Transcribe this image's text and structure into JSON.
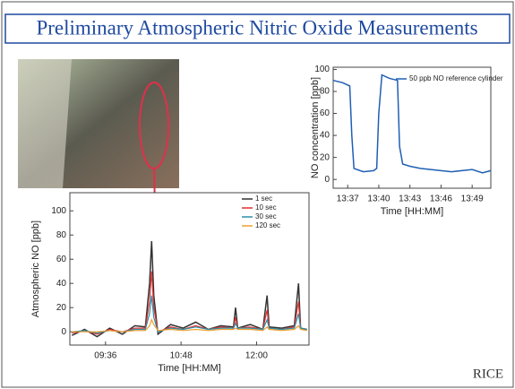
{
  "slide": {
    "title": "Preliminary Atmospheric Nitric Oxide Measurements",
    "logo": "RICE"
  },
  "chart_data": [
    {
      "type": "line",
      "ylabel": "NO concentration [ppb]",
      "xlabel": "Time [HH:MM]",
      "x": [
        815.6,
        816.5,
        817.2,
        817.4,
        817.6,
        818.5,
        819.5,
        819.8,
        820.0,
        820.3,
        821.0,
        821.8,
        822.0,
        822.3,
        823,
        824,
        825,
        826,
        827,
        828,
        829,
        830,
        830.8
      ],
      "series": [
        {
          "name": "50 ppb NO reference cylinder",
          "color": "#1f5fb4",
          "values": [
            90,
            88,
            85,
            40,
            10,
            7,
            8,
            10,
            60,
            95,
            92,
            90,
            30,
            14,
            12,
            10,
            9,
            8,
            7,
            8,
            9,
            6,
            8
          ]
        }
      ],
      "xlim": [
        815.6,
        830.8
      ],
      "ylim": [
        -8,
        102
      ],
      "xticks": [
        {
          "value": 817,
          "label": "13:37"
        },
        {
          "value": 820,
          "label": "13:40"
        },
        {
          "value": 823,
          "label": "13:43"
        },
        {
          "value": 826,
          "label": "13:46"
        },
        {
          "value": 829,
          "label": "13:49"
        }
      ],
      "yticks": [
        0,
        20,
        40,
        60,
        80,
        100
      ]
    },
    {
      "type": "line",
      "ylabel": "Atmospheric NO [ppb]",
      "xlabel": "Time [HH:MM]",
      "x": [
        544,
        556,
        568,
        580,
        592,
        604,
        614,
        618,
        620,
        622,
        626,
        638,
        650,
        662,
        674,
        686,
        698,
        700,
        702,
        714,
        726,
        730,
        732,
        744,
        756,
        760,
        762,
        768
      ],
      "series": [
        {
          "name": "1 sec",
          "color": "#333333",
          "values": [
            -3,
            2,
            -4,
            3,
            -2,
            5,
            4,
            40,
            75,
            30,
            -2,
            6,
            3,
            8,
            2,
            5,
            4,
            20,
            3,
            6,
            2,
            30,
            4,
            3,
            5,
            40,
            3,
            2
          ]
        },
        {
          "name": "10 sec",
          "color": "#e03030",
          "values": [
            -1,
            1,
            -2,
            2,
            0,
            3,
            3,
            25,
            50,
            20,
            0,
            4,
            2,
            5,
            2,
            4,
            3,
            12,
            3,
            4,
            2,
            18,
            3,
            2,
            4,
            25,
            3,
            2
          ]
        },
        {
          "name": "30 sec",
          "color": "#2a8fa8",
          "values": [
            0,
            1,
            -1,
            1,
            0,
            2,
            2,
            15,
            30,
            12,
            0,
            3,
            2,
            4,
            2,
            3,
            3,
            7,
            3,
            3,
            2,
            10,
            3,
            2,
            3,
            15,
            3,
            2
          ]
        },
        {
          "name": "120 sec",
          "color": "#f0a030",
          "values": [
            0,
            0,
            0,
            1,
            0,
            1,
            1,
            5,
            10,
            6,
            1,
            2,
            1,
            2,
            1,
            2,
            2,
            3,
            2,
            2,
            1,
            4,
            2,
            1,
            2,
            5,
            2,
            1
          ]
        }
      ],
      "xlim": [
        542,
        770
      ],
      "ylim": [
        -11,
        115
      ],
      "xticks": [
        {
          "value": 576,
          "label": "09:36"
        },
        {
          "value": 648,
          "label": "10:48"
        },
        {
          "value": 720,
          "label": "12:00"
        }
      ],
      "yticks": [
        0,
        20,
        40,
        60,
        80,
        100
      ]
    }
  ]
}
